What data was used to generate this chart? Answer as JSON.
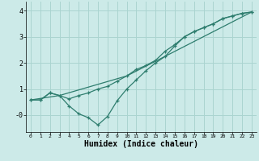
{
  "bg_color": "#cceae8",
  "line_color": "#2e7d6e",
  "grid_color": "#aad4d0",
  "xlabel": "Humidex (Indice chaleur)",
  "xlabel_fontsize": 7,
  "yticks": [
    0,
    1,
    2,
    3,
    4
  ],
  "ylabels": [
    "-0",
    "1",
    "2",
    "3",
    "4"
  ],
  "xticks": [
    0,
    1,
    2,
    3,
    4,
    5,
    6,
    7,
    8,
    9,
    10,
    11,
    12,
    13,
    14,
    15,
    16,
    17,
    18,
    19,
    20,
    21,
    22,
    23
  ],
  "ylim": [
    -0.65,
    4.35
  ],
  "xlim": [
    -0.5,
    23.5
  ],
  "line1_x": [
    0,
    1,
    2,
    3,
    4,
    5,
    6,
    7,
    8,
    9,
    10,
    11,
    12,
    13,
    14,
    15,
    16,
    17,
    18,
    19,
    20,
    21,
    22,
    23
  ],
  "line1_y": [
    0.58,
    0.58,
    0.85,
    0.75,
    0.62,
    0.75,
    0.85,
    1.0,
    1.1,
    1.3,
    1.5,
    1.75,
    1.9,
    2.1,
    2.45,
    2.7,
    3.0,
    3.2,
    3.35,
    3.5,
    3.7,
    3.8,
    3.9,
    3.95
  ],
  "line2_x": [
    0,
    1,
    2,
    3,
    4,
    5,
    6,
    7,
    8,
    9,
    10,
    11,
    12,
    13,
    14,
    15,
    16,
    17,
    18,
    19,
    20,
    21,
    22,
    23
  ],
  "line2_y": [
    0.58,
    0.58,
    0.85,
    0.75,
    0.35,
    0.05,
    -0.1,
    -0.38,
    -0.05,
    0.55,
    1.0,
    1.35,
    1.7,
    2.0,
    2.25,
    2.65,
    3.0,
    3.2,
    3.35,
    3.5,
    3.7,
    3.8,
    3.9,
    3.95
  ],
  "line3_x": [
    0,
    3,
    10,
    23
  ],
  "line3_y": [
    0.58,
    0.75,
    1.5,
    3.95
  ]
}
